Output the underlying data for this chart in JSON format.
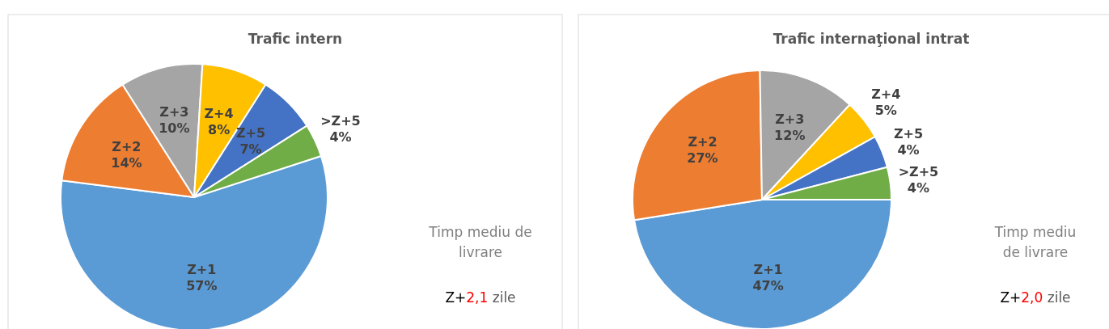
{
  "chart_data": [
    {
      "type": "pie",
      "title": "Trafic intern",
      "categories": [
        "Z+1",
        "Z+2",
        "Z+3",
        "Z+4",
        "Z+5",
        ">Z+5"
      ],
      "values": [
        57,
        14,
        10,
        8,
        7,
        4
      ],
      "colors": [
        "#5b9bd5",
        "#ed7d31",
        "#a5a5a5",
        "#ffc000",
        "#4472c4",
        "#70ad47"
      ],
      "value_labels": [
        "57%",
        "14%",
        "10%",
        "8%",
        "7%",
        "4%"
      ],
      "annotations": [
        "Timp mediu de livrare",
        "Z+2,1 zile"
      ]
    },
    {
      "type": "pie",
      "title": "Trafic internaţional intrat",
      "categories": [
        "Z+1",
        "Z+2",
        "Z+3",
        "Z+4",
        "Z+5",
        ">Z+5"
      ],
      "values": [
        47,
        27,
        12,
        5,
        4,
        4
      ],
      "colors": [
        "#5b9bd5",
        "#ed7d31",
        "#a5a5a5",
        "#ffc000",
        "#4472c4",
        "#70ad47"
      ],
      "value_labels": [
        "47%",
        "27%",
        "12%",
        "5%",
        "4%",
        "4%"
      ],
      "annotations": [
        "Timp mediu de livrare",
        "Z+2,0 zile"
      ]
    }
  ]
}
